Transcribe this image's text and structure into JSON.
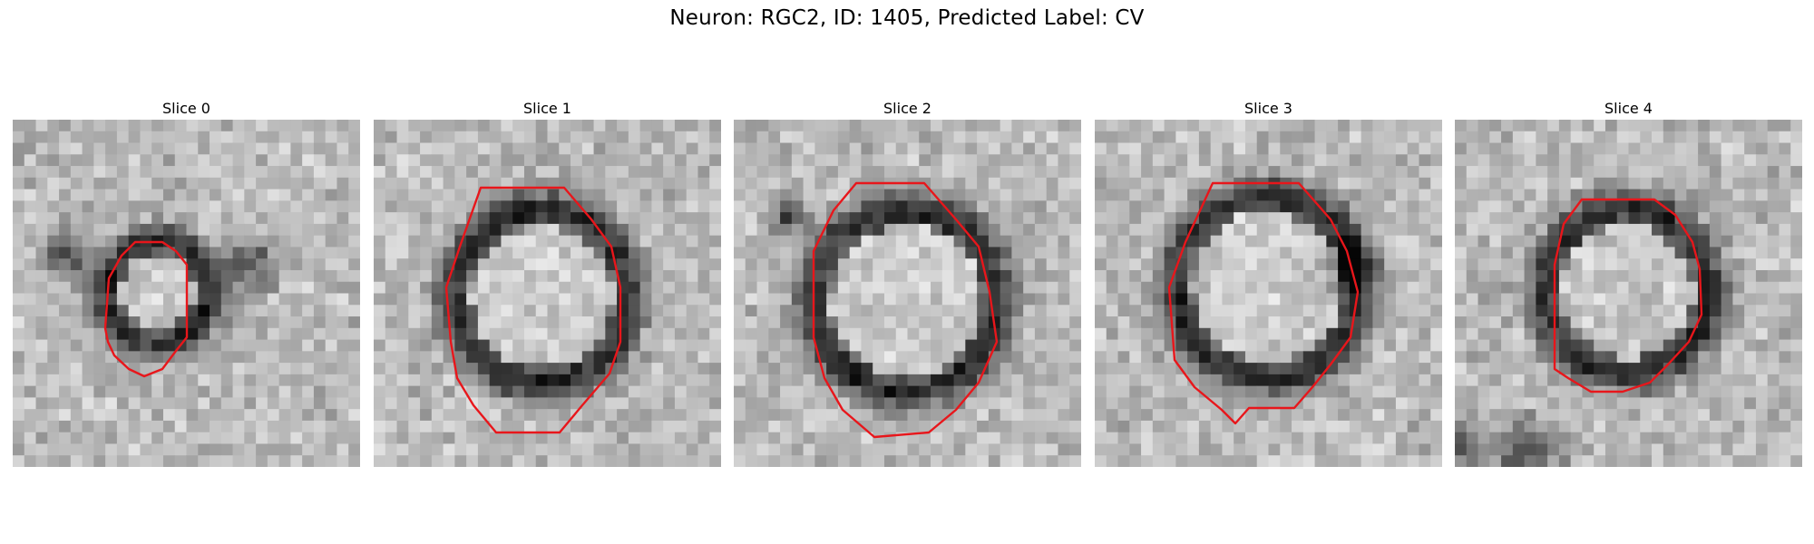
{
  "figure": {
    "title": "Neuron: RGC2, ID: 1405, Predicted Label: CV"
  },
  "panels": [
    {
      "title": "Slice 0"
    },
    {
      "title": "Slice 1"
    },
    {
      "title": "Slice 2"
    },
    {
      "title": "Slice 3"
    },
    {
      "title": "Slice 4"
    }
  ],
  "colors": {
    "contour": "#e8161b",
    "background": "#ffffff"
  }
}
